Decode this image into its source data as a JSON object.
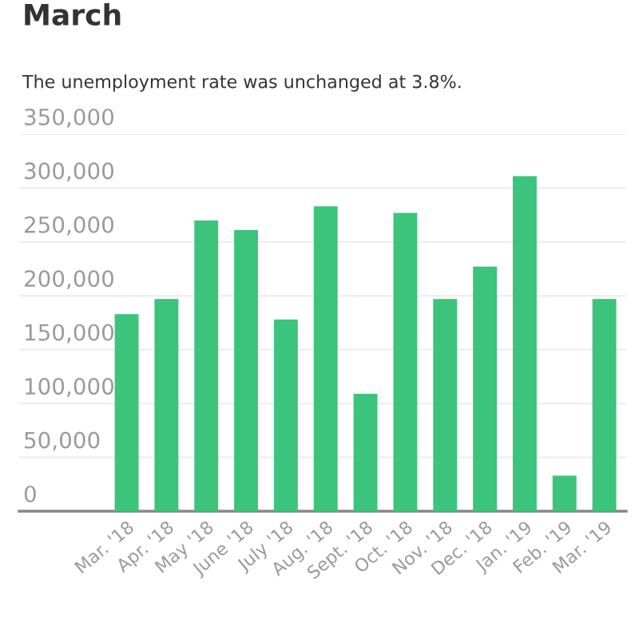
{
  "chart_data": {
    "type": "bar",
    "title": "March",
    "subtitle": "The unemployment rate was unchanged at 3.8%.",
    "categories": [
      "Mar. '18",
      "Apr. '18",
      "May '18",
      "June '18",
      "July '18",
      "Aug. '18",
      "Sept. '18",
      "Oct. '18",
      "Nov. '18",
      "Dec. '18",
      "Jan. '19",
      "Feb. '19",
      "Mar. '19"
    ],
    "values": [
      183000,
      197000,
      270000,
      261000,
      178000,
      283000,
      109000,
      277000,
      197000,
      227000,
      311000,
      33000,
      197000
    ],
    "color": "#3cc47c",
    "ylim": [
      0,
      350000
    ],
    "yticks": [
      {
        "value": 0,
        "label": "0"
      },
      {
        "value": 50000,
        "label": "50,000"
      },
      {
        "value": 100000,
        "label": "100,000"
      },
      {
        "value": 150000,
        "label": "150,000"
      },
      {
        "value": 200000,
        "label": "200,000"
      },
      {
        "value": 250000,
        "label": "250,000"
      },
      {
        "value": 300000,
        "label": "300,000"
      },
      {
        "value": 350000,
        "label": "350,000"
      }
    ],
    "grid": "y"
  }
}
